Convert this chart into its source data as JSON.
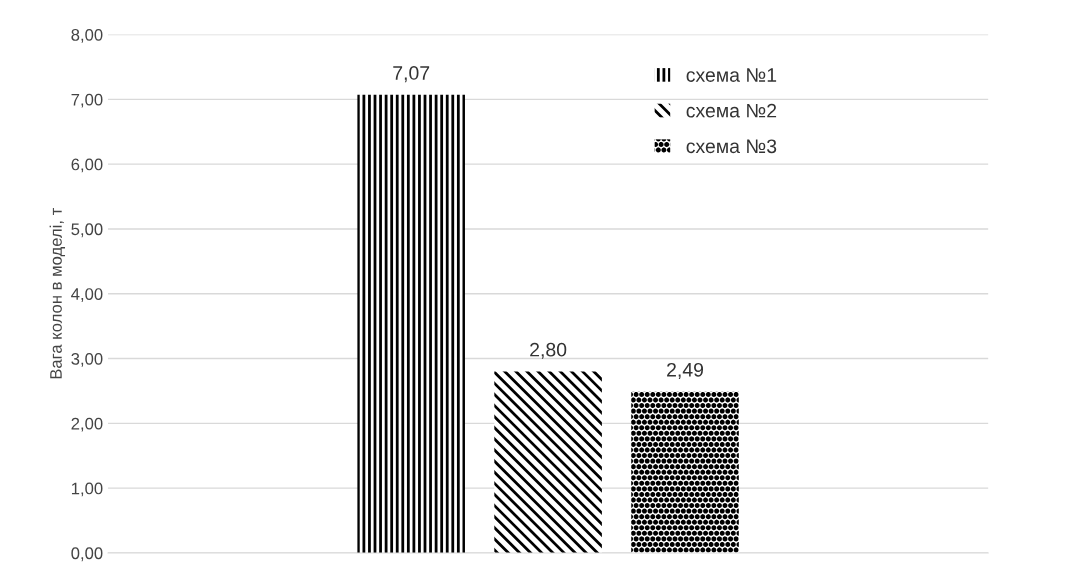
{
  "chart_data": {
    "type": "bar",
    "ylabel": "Вага колон в моделі, т",
    "categories": [
      null
    ],
    "series": [
      {
        "name": "схема №1",
        "color": "#000000",
        "values": [
          7.07
        ],
        "value_labels": [
          "7,07"
        ]
      },
      {
        "name": "схема №2",
        "color": "#000000",
        "values": [
          2.8
        ],
        "value_labels": [
          "2,80"
        ]
      },
      {
        "name": "схема №3",
        "color": "#000000",
        "values": [
          2.49
        ],
        "value_labels": [
          "2,49"
        ]
      }
    ],
    "ylim": [
      0,
      8
    ],
    "yticks": [
      {
        "value": 0,
        "label": "0,00"
      },
      {
        "value": 1,
        "label": "1,00"
      },
      {
        "value": 2,
        "label": "2,00"
      },
      {
        "value": 3,
        "label": "3,00"
      },
      {
        "value": 4,
        "label": "4,00"
      },
      {
        "value": 5,
        "label": "5,00"
      },
      {
        "value": 6,
        "label": "6,00"
      },
      {
        "value": 7,
        "label": "7,00"
      },
      {
        "value": 8,
        "label": "8,00"
      }
    ],
    "grid": "y",
    "legend": "top right"
  }
}
